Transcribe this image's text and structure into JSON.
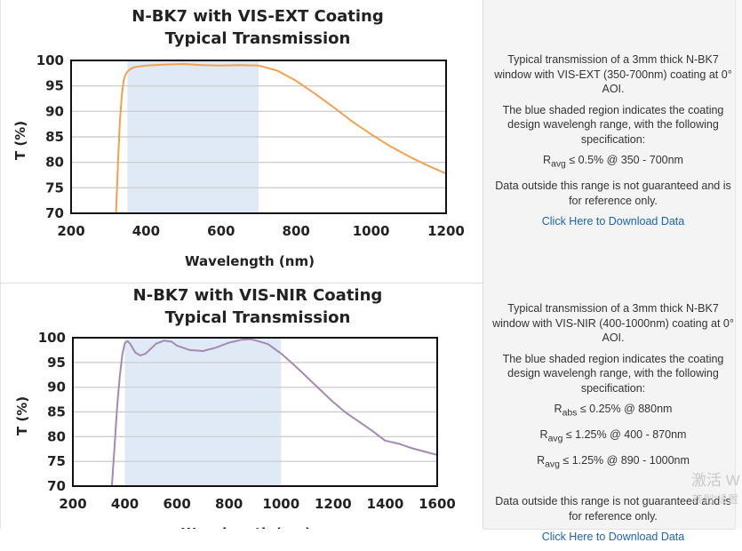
{
  "chart_data": [
    {
      "type": "line",
      "title": [
        "N-BK7 with VIS-EXT Coating",
        "Typical Transmission"
      ],
      "xlabel": "Wavelength (nm)",
      "ylabel": "T (%)",
      "xlim": [
        200,
        1200
      ],
      "ylim": [
        70,
        100
      ],
      "xticks": [
        200,
        400,
        600,
        800,
        1000,
        1200
      ],
      "yticks": [
        70,
        75,
        80,
        85,
        90,
        95,
        100
      ],
      "shaded_region": [
        350,
        700
      ],
      "color": "#f0a24f",
      "series": [
        {
          "x": [
            320,
            325,
            330,
            335,
            340,
            345,
            350,
            360,
            370,
            380,
            400,
            450,
            500,
            550,
            600,
            650,
            700,
            750,
            800,
            850,
            900,
            950,
            1000,
            1050,
            1100,
            1150,
            1200
          ],
          "y": [
            70,
            80,
            88,
            93,
            96,
            97.2,
            97.8,
            98.4,
            98.7,
            98.8,
            99.0,
            99.2,
            99.3,
            99.1,
            99.0,
            99.1,
            99.0,
            98.0,
            96.0,
            93.5,
            90.8,
            88.0,
            85.5,
            83.2,
            81.2,
            79.4,
            77.8
          ]
        }
      ]
    },
    {
      "type": "line",
      "title": [
        "N-BK7 with VIS-NIR Coating",
        "Typical Transmission"
      ],
      "xlabel": "Wavelength (nm)",
      "ylabel": "T (%)",
      "xlim": [
        200,
        1600
      ],
      "ylim": [
        70,
        100
      ],
      "xticks": [
        200,
        400,
        600,
        800,
        1000,
        1200,
        1400,
        1600
      ],
      "yticks": [
        70,
        75,
        80,
        85,
        90,
        95,
        100
      ],
      "shaded_region": [
        400,
        1000
      ],
      "color": "#a48ab0",
      "series": [
        {
          "x": [
            350,
            360,
            370,
            380,
            390,
            400,
            410,
            420,
            440,
            460,
            480,
            500,
            520,
            550,
            580,
            600,
            650,
            700,
            750,
            800,
            850,
            880,
            900,
            950,
            1000,
            1050,
            1100,
            1150,
            1200,
            1250,
            1300,
            1350,
            1400,
            1450,
            1500,
            1550,
            1600
          ],
          "y": [
            70,
            78,
            86,
            92,
            96.5,
            99.0,
            99.3,
            98.8,
            97.0,
            96.4,
            96.8,
            97.8,
            98.8,
            99.4,
            99.2,
            98.4,
            97.5,
            97.3,
            98.0,
            99.0,
            99.6,
            99.7,
            99.5,
            98.7,
            96.8,
            94.5,
            92.0,
            89.5,
            87.0,
            84.8,
            83.0,
            81.2,
            79.2,
            78.6,
            77.7,
            77.0,
            76.3
          ]
        }
      ]
    }
  ],
  "panels": [
    {
      "text1": "Typical transmission of a 3mm thick N-BK7 window with VIS-EXT (350-700nm) coating at 0° AOI.",
      "text2": "The blue shaded region indicates the coating design wavelengh range, with the following specification:",
      "spec1_main": "R",
      "spec1_sub": "avg",
      "spec1_rest": " ≤ 0.5% @ 350 - 700nm",
      "text3": "Data outside this range is not guaranteed and is for reference only.",
      "link": "Click Here to Download Data"
    },
    {
      "text1": "Typical transmission of a 3mm thick N-BK7 window with VIS-NIR (400-1000nm) coating at 0° AOI.",
      "text2": "The blue shaded region indicates the coating design wavelengh range, with the following specification:",
      "spec1_main": "R",
      "spec1_sub": "abs",
      "spec1_rest": " ≤ 0.25% @ 880nm",
      "spec2_main": "R",
      "spec2_sub": "avg",
      "spec2_rest": " ≤ 1.25% @ 400 - 870nm",
      "spec3_main": "R",
      "spec3_sub": "avg",
      "spec3_rest": " ≤ 1.25% @ 890 - 1000nm",
      "text3": "Data outside this range is not guaranteed and is for reference only.",
      "link": "Click Here to Download Data"
    }
  ],
  "watermark": {
    "line1": "激活 W",
    "line2": "转到“设置"
  }
}
